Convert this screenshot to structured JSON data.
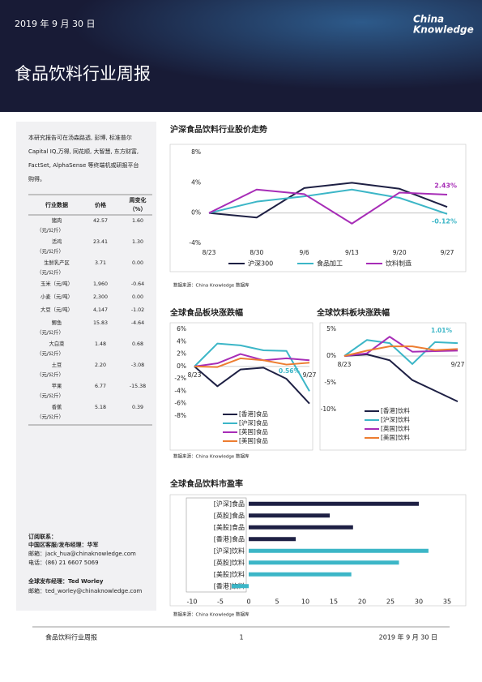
{
  "header": {
    "date": "2019 年 9 月 30 日",
    "brand": [
      "China",
      "Knowledge"
    ],
    "title": "食品饮料行业周报"
  },
  "sidebar": {
    "intro": [
      "本研究报告可在汤森路透, 彭博, 标准普尔",
      "Capital IQ,万得, 同花顺, 大智慧, 东方财富,",
      "FactSet, AlphaSense 等终端机或研报平台",
      "购得。"
    ],
    "table": {
      "columns": [
        "行业数据",
        "价格",
        "周变化",
        "（%）"
      ],
      "rows": [
        {
          "name": "猪肉",
          "unit": "（元/公斤）",
          "price": "42.57",
          "change": "1.60"
        },
        {
          "name": "活鸡",
          "unit": "（元/公斤）",
          "price": "23.41",
          "change": "1.30"
        },
        {
          "name": "生鲜乳产区",
          "unit": "（元/公斤）",
          "price": "3.71",
          "change": "0.00"
        },
        {
          "name": "玉米（元/吨）",
          "price": "1,960",
          "change": "-0.64"
        },
        {
          "name": "小麦（元/吨）",
          "price": "2,300",
          "change": "0.00"
        },
        {
          "name": "大豆（元/吨）",
          "price": "4,147",
          "change": "-1.02"
        },
        {
          "name": "鲫鱼",
          "unit": "（元/公斤）",
          "price": "15.83",
          "change": "-4.64"
        },
        {
          "name": "大白菜",
          "unit": "（元/公斤）",
          "price": "1.48",
          "change": "0.68"
        },
        {
          "name": "土豆",
          "unit": "（元/公斤）",
          "price": "2.20",
          "change": "-3.08"
        },
        {
          "name": "苹果",
          "unit": "（元/公斤）",
          "price": "6.77",
          "change": "-15.38"
        },
        {
          "name": "香蕉",
          "unit": "（元/公斤）",
          "price": "5.18",
          "change": "0.39"
        }
      ]
    },
    "contacts": [
      "订阅联系：",
      "中国区客服/发布经理：华军",
      "邮箱：jack_hua@chinaknowledge.com",
      "电话：(86) 21 6607 5069",
      "全球发布经理：Ted Worley",
      "邮箱：ted_worley@chinaknowledge.com"
    ]
  },
  "chart_data": [
    {
      "type": "line",
      "title": "沪深食品饮料行业股价走势",
      "source": "数据来源：China Knowledge 数据库",
      "categories": [
        "8/23",
        "8/30",
        "9/6",
        "9/13",
        "9/20",
        "9/27"
      ],
      "ylim": [
        -4,
        8
      ],
      "yticks": [
        {
          "value": -4,
          "label": "-4%"
        },
        {
          "value": 0,
          "label": "0%"
        },
        {
          "value": 4,
          "label": "4%"
        },
        {
          "value": 8,
          "label": "8%"
        }
      ],
      "series": [
        {
          "name": "沪深300",
          "color": "#1e2044",
          "values": [
            0,
            -0.6,
            3.3,
            4.0,
            3.2,
            0.8
          ]
        },
        {
          "name": "食品加工",
          "color": "#3cb6c7",
          "values": [
            0,
            1.5,
            2.2,
            3.1,
            2.0,
            -0.12
          ],
          "value_labels": [
            null,
            null,
            null,
            null,
            null,
            "-0.12%"
          ]
        },
        {
          "name": "饮料制造",
          "color": "#a72db7",
          "values": [
            0,
            3.1,
            2.5,
            -1.4,
            2.7,
            2.43
          ],
          "value_labels": [
            null,
            null,
            null,
            null,
            null,
            "2.43%"
          ]
        }
      ]
    },
    {
      "type": "line",
      "title": "全球食品板块涨跌幅",
      "source": "数据来源：China Knowledge 数据库",
      "categories": [
        "8/23",
        null,
        null,
        null,
        null,
        "9/27"
      ],
      "ylim": [
        -8,
        6
      ],
      "yticks": [
        {
          "value": -8,
          "label": "-8%"
        },
        {
          "value": -6,
          "label": "-6%"
        },
        {
          "value": -4,
          "label": "-4%"
        },
        {
          "value": -2,
          "label": "-2%"
        },
        {
          "value": 0,
          "label": "0%"
        },
        {
          "value": 2,
          "label": "2%"
        },
        {
          "value": 4,
          "label": "4%"
        },
        {
          "value": 6,
          "label": "6%"
        }
      ],
      "annotation": "0.56%",
      "series": [
        {
          "name": "[香港]食品",
          "color": "#1e2044",
          "values": [
            0,
            -3.2,
            -0.5,
            -0.2,
            -2.0,
            -6.0
          ]
        },
        {
          "name": "[沪深]食品",
          "color": "#3cb6c7",
          "values": [
            0,
            3.7,
            3.4,
            2.6,
            2.5,
            -4.0
          ]
        },
        {
          "name": "[英国]食品",
          "color": "#a72db7",
          "values": [
            0,
            0.5,
            2.0,
            1.0,
            1.3,
            1.0
          ]
        },
        {
          "name": "[美国]食品",
          "color": "#ed7d31",
          "values": [
            0,
            -0.1,
            1.3,
            1.0,
            0.3,
            0.6
          ]
        }
      ]
    },
    {
      "type": "line",
      "title": "全球饮料板块涨跌幅",
      "source": "数据来源：China Knowledge 数据库",
      "categories": [
        "8/23",
        null,
        null,
        null,
        null,
        "9/27"
      ],
      "ylim": [
        -10,
        5
      ],
      "yticks": [
        {
          "value": -10,
          "label": "-10%"
        },
        {
          "value": -5,
          "label": "-5%"
        },
        {
          "value": 0,
          "label": "0%"
        },
        {
          "value": 5,
          "label": "5%"
        }
      ],
      "annotation": "1.01%",
      "series": [
        {
          "name": "[香港]饮料",
          "color": "#1e2044",
          "values": [
            0,
            0.3,
            -0.8,
            -4.5,
            -6.5,
            -8.5
          ]
        },
        {
          "name": "[沪深]饮料",
          "color": "#3cb6c7",
          "values": [
            0,
            3.0,
            2.4,
            -1.5,
            2.6,
            2.4
          ]
        },
        {
          "name": "[英国]饮料",
          "color": "#a72db7",
          "values": [
            0,
            0.5,
            3.6,
            0.8,
            0.9,
            1.0
          ]
        },
        {
          "name": "[美国]饮料",
          "color": "#ed7d31",
          "values": [
            0,
            1.0,
            1.8,
            1.8,
            1.1,
            1.3
          ]
        }
      ]
    },
    {
      "type": "hbar",
      "title": "全球食品饮料市盈率",
      "source": "数据来源：China Knowledge 数据库",
      "categories": [
        "[沪深]食品",
        "[英股]食品",
        "[美股]食品",
        "[香港]食品",
        "[沪深]饮料",
        "[英股]饮料",
        "[美股]饮料",
        "[香港]饮料"
      ],
      "values": [
        30,
        14.3,
        18.4,
        8.3,
        31.7,
        26.5,
        18.1,
        -3
      ],
      "colors": [
        "#1e2044",
        "#1e2044",
        "#1e2044",
        "#1e2044",
        "#3cb6c7",
        "#3cb6c7",
        "#3cb6c7",
        "#3cb6c7"
      ],
      "xlim": [
        -10,
        35
      ],
      "xticks": [
        -10,
        -5,
        0,
        5,
        10,
        15,
        20,
        25,
        30,
        35
      ]
    }
  ],
  "footer": {
    "title": "食品饮料行业周报",
    "page": "1",
    "date": "2019 年 9 月 30 日"
  }
}
